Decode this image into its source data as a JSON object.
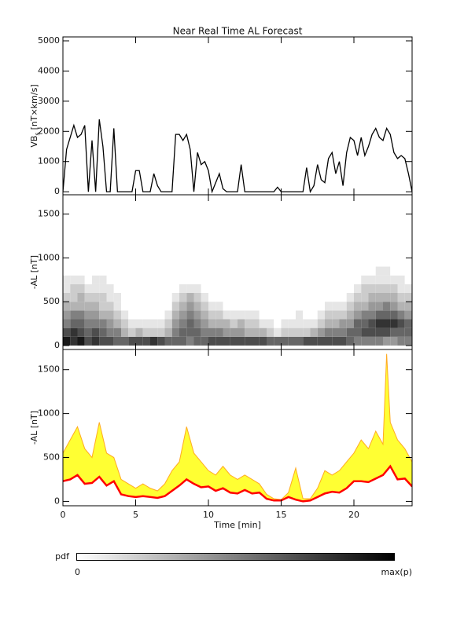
{
  "chart_data": [
    {
      "type": "line",
      "title": "Near Real Time AL Forecast",
      "ylabel": {
        "main": "VB",
        "sub": "s",
        "unit": "[nT×km/s]"
      },
      "xlim": [
        0,
        24
      ],
      "xticks": [
        0,
        5,
        10,
        15,
        20
      ],
      "show_xtick_labels": false,
      "ylim": [
        -100,
        5130
      ],
      "yticks": [
        0,
        1000,
        2000,
        3000,
        4000,
        5000
      ],
      "color": "#000000",
      "x": [
        0,
        0.25,
        0.5,
        0.75,
        1,
        1.25,
        1.5,
        1.75,
        2,
        2.25,
        2.5,
        2.75,
        3,
        3.25,
        3.5,
        3.75,
        4,
        4.25,
        4.5,
        4.75,
        5,
        5.25,
        5.5,
        5.75,
        6,
        6.25,
        6.5,
        6.75,
        7,
        7.25,
        7.5,
        7.75,
        8,
        8.25,
        8.5,
        8.75,
        9,
        9.25,
        9.5,
        9.75,
        10,
        10.25,
        10.5,
        10.75,
        11,
        11.25,
        11.5,
        11.75,
        12,
        12.25,
        12.5,
        12.75,
        13,
        13.25,
        13.5,
        13.75,
        14,
        14.25,
        14.5,
        14.75,
        15,
        15.25,
        15.5,
        15.75,
        16,
        16.25,
        16.5,
        16.75,
        17,
        17.25,
        17.5,
        17.75,
        18,
        18.25,
        18.5,
        18.75,
        19,
        19.25,
        19.5,
        19.75,
        20,
        20.25,
        20.5,
        20.75,
        21,
        21.25,
        21.5,
        21.75,
        22,
        22.25,
        22.5,
        22.75,
        23,
        23.25,
        23.5,
        23.75,
        24
      ],
      "values": [
        0,
        1400,
        1800,
        2200,
        1800,
        1900,
        2200,
        0,
        1700,
        0,
        2400,
        1500,
        0,
        0,
        2100,
        0,
        0,
        0,
        0,
        0,
        700,
        700,
        0,
        0,
        0,
        600,
        200,
        0,
        0,
        0,
        0,
        1900,
        1900,
        1700,
        1900,
        1400,
        0,
        1300,
        900,
        1000,
        700,
        0,
        300,
        600,
        100,
        0,
        0,
        0,
        0,
        900,
        0,
        0,
        0,
        0,
        0,
        0,
        0,
        0,
        0,
        150,
        0,
        0,
        0,
        0,
        0,
        0,
        0,
        800,
        0,
        200,
        900,
        400,
        300,
        1100,
        1300,
        600,
        1000,
        200,
        1300,
        1800,
        1700,
        1200,
        1800,
        1200,
        1500,
        1900,
        2100,
        1800,
        1700,
        2100,
        1900,
        1300,
        1100,
        1200,
        1100,
        600,
        0
      ]
    },
    {
      "type": "heatmap",
      "ylabel": "-AL [nT]",
      "xlim": [
        0,
        24
      ],
      "xticks": [
        0,
        5,
        10,
        15,
        20
      ],
      "show_xtick_labels": false,
      "ylim": [
        -45,
        1720
      ],
      "yticks": [
        0,
        500,
        1000,
        1500
      ],
      "xbins": [
        0,
        0.5,
        1,
        1.5,
        2,
        2.5,
        3,
        3.5,
        4,
        4.5,
        5,
        5.5,
        6,
        6.5,
        7,
        7.5,
        8,
        8.5,
        9,
        9.5,
        10,
        10.5,
        11,
        11.5,
        12,
        12.5,
        13,
        13.5,
        14,
        14.5,
        15,
        15.5,
        16,
        16.5,
        17,
        17.5,
        18,
        18.5,
        19,
        19.5,
        20,
        20.5,
        21,
        21.5,
        22,
        22.5,
        23,
        23.5,
        24
      ],
      "ybins": [
        0,
        100,
        200,
        300,
        400,
        500,
        600,
        700,
        800,
        900
      ],
      "values": [
        [
          0.9,
          0.7,
          0.5,
          0.4,
          0.3,
          0.2,
          0.1,
          0.1,
          0
        ],
        [
          0.8,
          0.8,
          0.6,
          0.5,
          0.3,
          0.2,
          0.2,
          0.1,
          0
        ],
        [
          0.9,
          0.7,
          0.6,
          0.5,
          0.3,
          0.3,
          0.2,
          0.1,
          0
        ],
        [
          0.7,
          0.6,
          0.5,
          0.4,
          0.3,
          0.2,
          0.1,
          0,
          0
        ],
        [
          0.8,
          0.7,
          0.5,
          0.4,
          0.3,
          0.2,
          0.1,
          0.1,
          0
        ],
        [
          0.7,
          0.6,
          0.5,
          0.3,
          0.2,
          0.2,
          0.1,
          0.1,
          0
        ],
        [
          0.7,
          0.5,
          0.4,
          0.3,
          0.2,
          0.1,
          0.1,
          0,
          0
        ],
        [
          0.6,
          0.5,
          0.3,
          0.2,
          0.1,
          0.1,
          0,
          0,
          0
        ],
        [
          0.6,
          0.3,
          0.2,
          0.1,
          0,
          0,
          0,
          0,
          0
        ],
        [
          0.7,
          0.2,
          0.1,
          0,
          0,
          0,
          0,
          0,
          0
        ],
        [
          0.7,
          0.3,
          0.1,
          0,
          0,
          0,
          0,
          0,
          0
        ],
        [
          0.7,
          0.2,
          0.1,
          0,
          0,
          0,
          0,
          0,
          0
        ],
        [
          0.8,
          0.2,
          0.1,
          0,
          0,
          0,
          0,
          0,
          0
        ],
        [
          0.7,
          0.2,
          0.1,
          0,
          0,
          0,
          0,
          0,
          0
        ],
        [
          0.6,
          0.3,
          0.2,
          0.1,
          0,
          0,
          0,
          0,
          0
        ],
        [
          0.6,
          0.5,
          0.4,
          0.3,
          0.2,
          0.1,
          0,
          0,
          0
        ],
        [
          0.6,
          0.6,
          0.5,
          0.4,
          0.3,
          0.2,
          0.1,
          0,
          0
        ],
        [
          0.5,
          0.6,
          0.6,
          0.5,
          0.4,
          0.3,
          0.1,
          0,
          0
        ],
        [
          0.6,
          0.6,
          0.5,
          0.4,
          0.3,
          0.2,
          0.1,
          0,
          0
        ],
        [
          0.6,
          0.5,
          0.4,
          0.3,
          0.2,
          0.1,
          0,
          0,
          0
        ],
        [
          0.7,
          0.5,
          0.3,
          0.2,
          0.1,
          0,
          0,
          0,
          0
        ],
        [
          0.7,
          0.5,
          0.3,
          0.2,
          0.1,
          0,
          0,
          0,
          0
        ],
        [
          0.7,
          0.4,
          0.3,
          0.1,
          0,
          0,
          0,
          0,
          0
        ],
        [
          0.7,
          0.4,
          0.2,
          0.1,
          0,
          0,
          0,
          0,
          0
        ],
        [
          0.7,
          0.4,
          0.3,
          0.1,
          0,
          0,
          0,
          0,
          0
        ],
        [
          0.7,
          0.3,
          0.2,
          0.1,
          0,
          0,
          0,
          0,
          0
        ],
        [
          0.7,
          0.3,
          0.2,
          0.1,
          0,
          0,
          0,
          0,
          0
        ],
        [
          0.7,
          0.3,
          0.1,
          0,
          0,
          0,
          0,
          0,
          0
        ],
        [
          0.6,
          0.2,
          0.1,
          0,
          0,
          0,
          0,
          0,
          0
        ],
        [
          0.6,
          0.1,
          0,
          0,
          0,
          0,
          0,
          0,
          0
        ],
        [
          0.6,
          0.2,
          0.1,
          0,
          0,
          0,
          0,
          0,
          0
        ],
        [
          0.6,
          0.2,
          0.1,
          0,
          0,
          0,
          0,
          0,
          0
        ],
        [
          0.6,
          0.2,
          0.1,
          0.1,
          0,
          0,
          0,
          0,
          0
        ],
        [
          0.7,
          0.2,
          0.1,
          0,
          0,
          0,
          0,
          0,
          0
        ],
        [
          0.7,
          0.3,
          0.1,
          0,
          0,
          0,
          0,
          0,
          0
        ],
        [
          0.7,
          0.4,
          0.2,
          0.1,
          0,
          0,
          0,
          0,
          0
        ],
        [
          0.7,
          0.5,
          0.3,
          0.2,
          0.1,
          0,
          0,
          0,
          0
        ],
        [
          0.7,
          0.5,
          0.3,
          0.2,
          0.1,
          0,
          0,
          0,
          0
        ],
        [
          0.7,
          0.5,
          0.4,
          0.2,
          0.1,
          0,
          0,
          0,
          0
        ],
        [
          0.6,
          0.6,
          0.4,
          0.3,
          0.2,
          0.1,
          0,
          0,
          0
        ],
        [
          0.5,
          0.6,
          0.6,
          0.4,
          0.3,
          0.2,
          0.1,
          0,
          0
        ],
        [
          0.5,
          0.7,
          0.6,
          0.5,
          0.3,
          0.2,
          0.2,
          0.1,
          0
        ],
        [
          0.5,
          0.7,
          0.7,
          0.5,
          0.4,
          0.3,
          0.2,
          0.1,
          0
        ],
        [
          0.5,
          0.7,
          0.8,
          0.6,
          0.4,
          0.3,
          0.2,
          0.1,
          0.1
        ],
        [
          0.4,
          0.7,
          0.8,
          0.6,
          0.5,
          0.3,
          0.2,
          0.1,
          0.1
        ],
        [
          0.4,
          0.6,
          0.8,
          0.6,
          0.4,
          0.3,
          0.2,
          0.1,
          0
        ],
        [
          0.5,
          0.6,
          0.7,
          0.5,
          0.3,
          0.2,
          0.1,
          0.1,
          0
        ],
        [
          0.5,
          0.6,
          0.6,
          0.4,
          0.3,
          0.2,
          0.1,
          0,
          0
        ]
      ]
    },
    {
      "type": "band",
      "ylabel": "-AL [nT]",
      "xlabel": "Time [min]",
      "xlim": [
        0,
        24
      ],
      "xticks": [
        0,
        5,
        10,
        15,
        20
      ],
      "show_xtick_labels": true,
      "ylim": [
        -50,
        1730
      ],
      "yticks": [
        0,
        500,
        1000,
        1500
      ],
      "band_color": "#ffff33",
      "edge_color": "#ffaa22",
      "color": "#ff0000",
      "x": [
        0,
        0.5,
        1,
        1.5,
        2,
        2.5,
        3,
        3.5,
        4,
        4.5,
        5,
        5.5,
        6,
        6.5,
        7,
        7.5,
        8,
        8.5,
        9,
        9.5,
        10,
        10.5,
        11,
        11.5,
        12,
        12.5,
        13,
        13.5,
        14,
        14.5,
        15,
        15.5,
        16,
        16.5,
        17,
        17.5,
        18,
        18.5,
        19,
        19.5,
        20,
        20.5,
        21,
        21.5,
        22,
        22.25,
        22.5,
        23,
        23.5,
        24
      ],
      "upper": [
        550,
        700,
        850,
        600,
        500,
        900,
        550,
        500,
        250,
        200,
        150,
        200,
        150,
        120,
        200,
        350,
        450,
        850,
        550,
        450,
        350,
        300,
        400,
        300,
        250,
        300,
        250,
        200,
        80,
        30,
        20,
        100,
        380,
        30,
        30,
        150,
        350,
        300,
        350,
        450,
        550,
        700,
        600,
        800,
        650,
        1680,
        900,
        700,
        600,
        450
      ],
      "values": [
        230,
        250,
        300,
        200,
        210,
        280,
        180,
        230,
        80,
        60,
        50,
        60,
        50,
        40,
        60,
        120,
        180,
        250,
        200,
        160,
        170,
        120,
        150,
        100,
        90,
        130,
        90,
        100,
        30,
        10,
        10,
        50,
        20,
        0,
        10,
        50,
        90,
        110,
        100,
        150,
        230,
        230,
        220,
        260,
        300,
        350,
        400,
        250,
        260,
        170
      ]
    }
  ],
  "colorbar": {
    "label": "pdf",
    "min_label": "0",
    "max_label": "max(p)"
  }
}
